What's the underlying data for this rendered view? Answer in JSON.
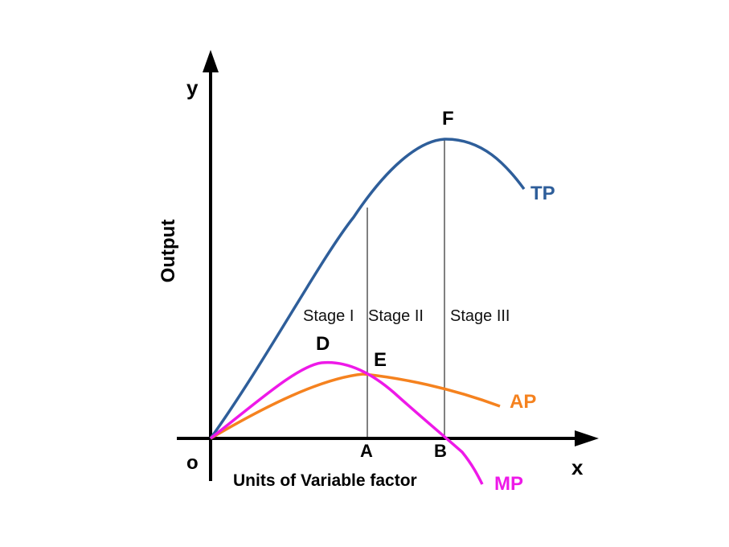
{
  "axes": {
    "y_letter": "y",
    "x_letter": "x",
    "origin": "o",
    "y_title": "Output",
    "x_title": "Units of Variable factor"
  },
  "stages": {
    "stage1": "Stage I",
    "stage2": "Stage II",
    "stage3": "Stage III"
  },
  "points": {
    "D": "D",
    "E": "E",
    "F": "F",
    "A": "A",
    "B": "B"
  },
  "curves": {
    "tp": {
      "label": "TP",
      "color": "#2e5e9a"
    },
    "ap": {
      "label": "AP",
      "color": "#f5821f"
    },
    "mp": {
      "label": "MP",
      "color": "#ee19e8"
    }
  },
  "axis_color": "#000000"
}
